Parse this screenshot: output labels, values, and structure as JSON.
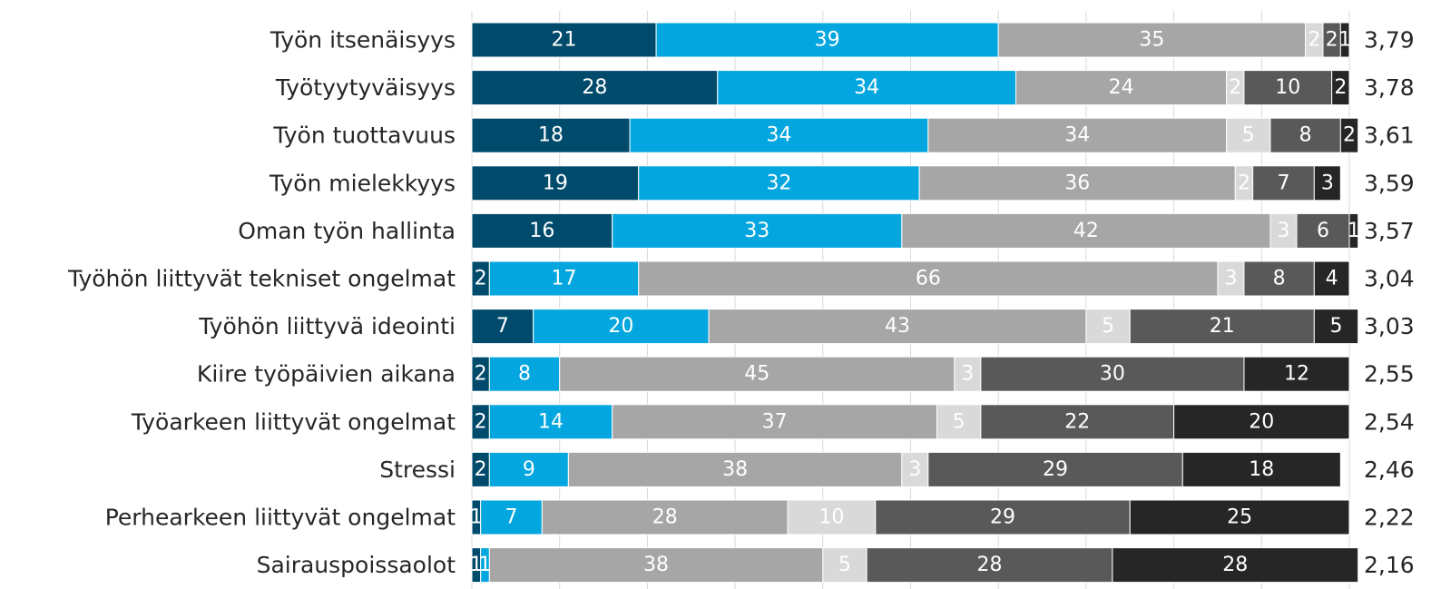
{
  "chart_data": {
    "type": "bar",
    "orientation": "horizontal",
    "stacked": true,
    "grid": true,
    "xlim": [
      0,
      100
    ],
    "categories": [
      "Työn itsenäisyys",
      "Työtyytyväisyys",
      "Työn tuottavuus",
      "Työn mielekkyys",
      "Oman työn hallinta",
      "Työhön liittyvät tekniset ongelmat",
      "Työhön liittyvä ideointi",
      "Kiire työpäivien aikana",
      "Työarkeen liittyvät ongelmat",
      "Stressi",
      "Perhearkeen liittyvät ongelmat",
      "Sairauspoissaolot"
    ],
    "series": [
      {
        "color": "#004a6b",
        "text_color": "#ffffff",
        "values": [
          21,
          28,
          18,
          19,
          16,
          2,
          7,
          2,
          2,
          2,
          1,
          1
        ]
      },
      {
        "color": "#03a6de",
        "text_color": "#ffffff",
        "values": [
          39,
          34,
          34,
          32,
          33,
          17,
          20,
          8,
          14,
          9,
          7,
          1
        ]
      },
      {
        "color": "#a6a6a6",
        "text_color": "#ffffff",
        "values": [
          35,
          24,
          34,
          36,
          42,
          66,
          43,
          45,
          37,
          38,
          28,
          38
        ]
      },
      {
        "color": "#d9d9d9",
        "text_color": "#ffffff",
        "values": [
          2,
          2,
          5,
          2,
          3,
          3,
          5,
          3,
          5,
          3,
          10,
          5
        ]
      },
      {
        "color": "#595959",
        "text_color": "#ffffff",
        "values": [
          2,
          10,
          8,
          7,
          6,
          8,
          21,
          30,
          22,
          29,
          29,
          28
        ]
      },
      {
        "color": "#262626",
        "text_color": "#ffffff",
        "values": [
          1,
          2,
          2,
          3,
          1,
          4,
          5,
          12,
          20,
          18,
          25,
          28
        ]
      }
    ],
    "averages": [
      "3,79",
      "3,78",
      "3,61",
      "3,59",
      "3,57",
      "3,04",
      "3,03",
      "2,55",
      "2,54",
      "2,46",
      "2,22",
      "2,16"
    ]
  }
}
